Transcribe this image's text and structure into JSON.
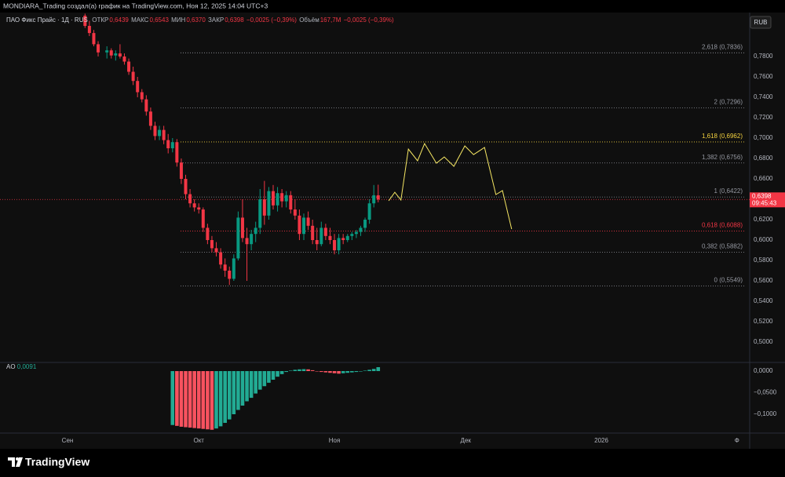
{
  "header": {
    "attribution": "MONDIARA_Trading создал(а) график на TradingView.com, Ноя 12, 2025 14:04 UTC+3",
    "logo": "TradingView",
    "currency": "RUB"
  },
  "chart_data": [
    {
      "type": "candlestick",
      "title": "ПАО Фикс Прайс · 1Д · RUS",
      "legend": [
        {
          "name": "ОТКР",
          "value": "0,6439"
        },
        {
          "name": "МАКС",
          "value": "0,6543"
        },
        {
          "name": "МИН",
          "value": "0,6370"
        },
        {
          "name": "ЗАКР",
          "value": "0,6398"
        }
      ],
      "change": "−0,0025 (−0,39%)",
      "volume": {
        "name": "Объём",
        "value": "167,7M"
      },
      "volume_change": "−0,0025 (−0,39%)",
      "x": [
        4,
        5,
        6,
        7,
        9,
        10,
        11,
        12,
        13,
        14,
        15,
        16,
        17,
        18,
        19,
        20,
        21,
        22,
        23,
        24,
        25,
        26,
        27,
        28,
        29,
        30,
        31,
        32,
        33,
        34,
        35,
        36,
        37,
        38,
        39,
        40,
        41,
        42,
        43,
        44,
        45,
        46,
        47,
        48,
        49,
        50,
        51,
        52,
        53,
        54,
        55,
        56,
        57,
        58,
        59,
        60,
        61,
        62,
        63,
        64,
        65,
        66,
        67,
        68,
        69,
        70,
        71
      ],
      "open": [
        0.82,
        0.81,
        0.803,
        0.792,
        0.784,
        0.786,
        0.781,
        0.783,
        0.78,
        0.775,
        0.765,
        0.756,
        0.745,
        0.738,
        0.726,
        0.712,
        0.702,
        0.708,
        0.698,
        0.69,
        0.696,
        0.676,
        0.66,
        0.645,
        0.636,
        0.632,
        0.63,
        0.612,
        0.6,
        0.592,
        0.588,
        0.576,
        0.57,
        0.562,
        0.582,
        0.622,
        0.602,
        0.596,
        0.606,
        0.612,
        0.64,
        0.624,
        0.648,
        0.634,
        0.646,
        0.638,
        0.644,
        0.63,
        0.624,
        0.606,
        0.622,
        0.614,
        0.6,
        0.596,
        0.612,
        0.604,
        0.6,
        0.59,
        0.602,
        0.6,
        0.604,
        0.606,
        0.608,
        0.612,
        0.62,
        0.636,
        0.6439
      ],
      "high": [
        0.822,
        0.815,
        0.806,
        0.795,
        0.79,
        0.788,
        0.786,
        0.792,
        0.783,
        0.778,
        0.77,
        0.76,
        0.748,
        0.742,
        0.73,
        0.716,
        0.712,
        0.712,
        0.704,
        0.7,
        0.699,
        0.68,
        0.664,
        0.65,
        0.64,
        0.636,
        0.632,
        0.616,
        0.604,
        0.598,
        0.592,
        0.582,
        0.574,
        0.586,
        0.628,
        0.64,
        0.612,
        0.61,
        0.618,
        0.65,
        0.658,
        0.652,
        0.654,
        0.652,
        0.65,
        0.648,
        0.648,
        0.64,
        0.63,
        0.626,
        0.628,
        0.62,
        0.612,
        0.618,
        0.616,
        0.612,
        0.606,
        0.606,
        0.606,
        0.606,
        0.608,
        0.61,
        0.614,
        0.622,
        0.64,
        0.654,
        0.6543
      ],
      "low": [
        0.808,
        0.8,
        0.79,
        0.78,
        0.778,
        0.778,
        0.776,
        0.778,
        0.772,
        0.762,
        0.752,
        0.74,
        0.735,
        0.722,
        0.708,
        0.698,
        0.698,
        0.694,
        0.685,
        0.686,
        0.672,
        0.655,
        0.64,
        0.632,
        0.628,
        0.626,
        0.608,
        0.596,
        0.588,
        0.584,
        0.572,
        0.564,
        0.556,
        0.56,
        0.58,
        0.598,
        0.56,
        0.59,
        0.598,
        0.606,
        0.615,
        0.62,
        0.63,
        0.628,
        0.632,
        0.632,
        0.626,
        0.62,
        0.6,
        0.6,
        0.61,
        0.596,
        0.59,
        0.594,
        0.6,
        0.596,
        0.586,
        0.586,
        0.596,
        0.598,
        0.6,
        0.602,
        0.604,
        0.608,
        0.616,
        0.632,
        0.637
      ],
      "close": [
        0.81,
        0.803,
        0.792,
        0.784,
        0.786,
        0.781,
        0.783,
        0.78,
        0.775,
        0.765,
        0.756,
        0.745,
        0.738,
        0.726,
        0.712,
        0.702,
        0.708,
        0.698,
        0.69,
        0.696,
        0.676,
        0.66,
        0.645,
        0.636,
        0.632,
        0.63,
        0.612,
        0.6,
        0.592,
        0.588,
        0.576,
        0.57,
        0.562,
        0.582,
        0.622,
        0.602,
        0.596,
        0.606,
        0.612,
        0.64,
        0.624,
        0.648,
        0.634,
        0.646,
        0.638,
        0.644,
        0.63,
        0.624,
        0.606,
        0.622,
        0.614,
        0.6,
        0.596,
        0.612,
        0.604,
        0.6,
        0.59,
        0.602,
        0.6,
        0.604,
        0.606,
        0.608,
        0.612,
        0.62,
        0.636,
        0.6439,
        0.6398
      ],
      "up_color": "#089981",
      "down_color": "#f23645",
      "xlim": [
        -15.43,
        155.9
      ],
      "xticks": [
        {
          "value": 0,
          "label": "Сен"
        },
        {
          "value": 30,
          "label": "Окт"
        },
        {
          "value": 61,
          "label": "Ноя"
        },
        {
          "value": 91,
          "label": "Дек"
        },
        {
          "value": 122,
          "label": "2026"
        },
        {
          "value": 153,
          "label": "Ф"
        }
      ],
      "ylim": [
        0.48,
        0.82
      ],
      "yticks": [
        {
          "value": 0.5,
          "label": "0,5000"
        },
        {
          "value": 0.52,
          "label": "0,5200"
        },
        {
          "value": 0.54,
          "label": "0,5400"
        },
        {
          "value": 0.56,
          "label": "0,5600"
        },
        {
          "value": 0.58,
          "label": "0,5800"
        },
        {
          "value": 0.6,
          "label": "0,6000"
        },
        {
          "value": 0.62,
          "label": "0,6200"
        },
        {
          "value": 0.64,
          "label": "0,6400"
        },
        {
          "value": 0.66,
          "label": "0,6600"
        },
        {
          "value": 0.68,
          "label": "0,6800"
        },
        {
          "value": 0.7,
          "label": "0,7000"
        },
        {
          "value": 0.72,
          "label": "0,7200"
        },
        {
          "value": 0.74,
          "label": "0,7400"
        },
        {
          "value": 0.76,
          "label": "0,7600"
        },
        {
          "value": 0.78,
          "label": "0,7800"
        }
      ],
      "last_price": {
        "value": 0.6398,
        "label": "0,6398",
        "countdown": "09:45:43",
        "color": "#f23645"
      },
      "fib_levels": [
        {
          "value": 0.7836,
          "label": "2,618 (0,7836)",
          "color": "#9598a1"
        },
        {
          "value": 0.7296,
          "label": "2 (0,7296)",
          "color": "#9598a1"
        },
        {
          "value": 0.6962,
          "label": "1,618 (0,6962)",
          "color": "#f5d33f"
        },
        {
          "value": 0.6756,
          "label": "1,382 (0,6756)",
          "color": "#9598a1"
        },
        {
          "value": 0.6422,
          "label": "1 (0,6422)",
          "color": "#9598a1"
        },
        {
          "value": 0.6088,
          "label": "0,618 (0,6088)",
          "color": "#f23645"
        },
        {
          "value": 0.5882,
          "label": "0,382 (0,5882)",
          "color": "#9598a1"
        },
        {
          "value": 0.5549,
          "label": "0 (0,5549)",
          "color": "#9598a1"
        }
      ],
      "forecast": {
        "color": "#f5e663",
        "x": [
          73.4,
          74.8,
          76.2,
          77.9,
          80.0,
          81.6,
          84.3,
          86.1,
          88.3,
          90.8,
          92.8,
          95.3,
          97.9,
          99.4,
          101.5
        ],
        "y": [
          0.6385,
          0.6469,
          0.6392,
          0.6892,
          0.6777,
          0.6946,
          0.6754,
          0.6815,
          0.6723,
          0.6923,
          0.6838,
          0.6908,
          0.6446,
          0.6485,
          0.6108
        ]
      }
    },
    {
      "type": "bar",
      "title": "AO",
      "value_label": "0,0091",
      "x": [
        24,
        25,
        26,
        27,
        28,
        29,
        30,
        31,
        32,
        33,
        34,
        35,
        36,
        37,
        38,
        39,
        40,
        41,
        42,
        43,
        44,
        45,
        46,
        47,
        48,
        49,
        50,
        51,
        52,
        53,
        54,
        55,
        56,
        57,
        58,
        59,
        60,
        61,
        62,
        63,
        64,
        65,
        66,
        67,
        68,
        69,
        70,
        71
      ],
      "values": [
        -0.125,
        -0.127,
        -0.129,
        -0.13,
        -0.131,
        -0.132,
        -0.133,
        -0.134,
        -0.135,
        -0.136,
        -0.133,
        -0.128,
        -0.12,
        -0.112,
        -0.1,
        -0.09,
        -0.08,
        -0.07,
        -0.062,
        -0.052,
        -0.043,
        -0.035,
        -0.027,
        -0.02,
        -0.013,
        -0.007,
        -0.002,
        0.001,
        0.003,
        0.004,
        0.0045,
        0.004,
        0.002,
        0,
        -0.002,
        -0.003,
        -0.004,
        -0.005,
        -0.006,
        -0.005,
        -0.004,
        -0.003,
        -0.002,
        -0.001,
        0.001,
        0.003,
        0.005,
        0.0091
      ],
      "up_color": "#22ab94",
      "down_color": "#f7525f",
      "ylim": [
        -0.14,
        0.02
      ],
      "yticks": [
        {
          "value": 0,
          "label": "0,0000"
        },
        {
          "value": -0.05,
          "label": "−0,0500"
        },
        {
          "value": -0.1,
          "label": "−0,1000"
        }
      ]
    }
  ]
}
